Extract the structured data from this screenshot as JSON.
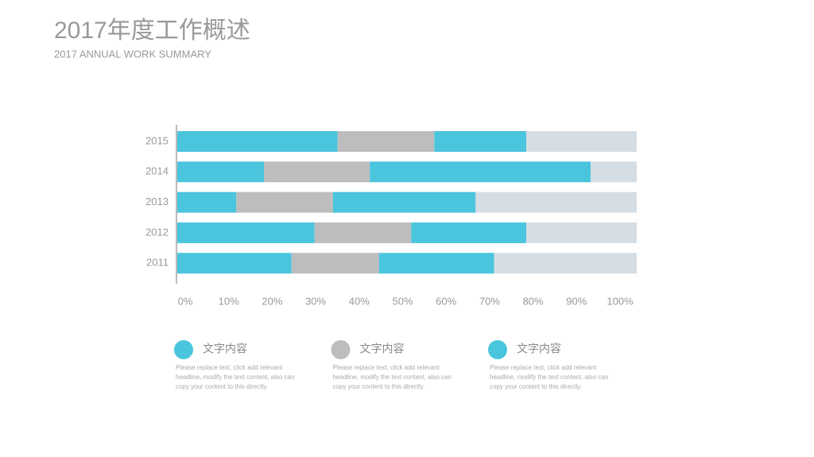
{
  "chart_data": {
    "type": "stacked-barh",
    "title": "2017年度工作概述",
    "subtitle": "2017 ANNUAL WORK SUMMARY",
    "categories": [
      "2015",
      "2014",
      "2013",
      "2012",
      "2011"
    ],
    "series": [
      {
        "color": "#4ac5dd",
        "values": [
          35,
          19,
          13,
          30,
          25
        ]
      },
      {
        "color": "#bdbdbd",
        "values": [
          21,
          23,
          21,
          21,
          19
        ]
      },
      {
        "color": "#4ac5dd",
        "values": [
          20,
          48,
          31,
          25,
          25
        ]
      },
      {
        "color": "#d6dee5",
        "values": [
          24,
          10,
          35,
          24,
          31
        ]
      }
    ],
    "xlim": [
      0,
      100
    ],
    "xticks": [
      {
        "value": 0,
        "label": "0%"
      },
      {
        "value": 10,
        "label": "10%"
      },
      {
        "value": 20,
        "label": "20%"
      },
      {
        "value": 30,
        "label": "30%"
      },
      {
        "value": 40,
        "label": "40%"
      },
      {
        "value": 50,
        "label": "50%"
      },
      {
        "value": 60,
        "label": "60%"
      },
      {
        "value": 70,
        "label": "70%"
      },
      {
        "value": 80,
        "label": "80%"
      },
      {
        "value": 90,
        "label": "90%"
      },
      {
        "value": 100,
        "label": "100%"
      }
    ],
    "grid": false,
    "notes": [
      {
        "color": "#4ac5dd",
        "label": "文字内容",
        "lines": [
          "Please replace text, click add relevant",
          "headline, modify the text content, also can",
          "copy your content to this directly."
        ]
      },
      {
        "color": "#bdbdbd",
        "label": "文字内容",
        "lines": [
          "Please replace text, click add relevant",
          "headline, modify the text content, also can",
          "copy your content to this directly."
        ]
      },
      {
        "color": "#4ac5dd",
        "label": "文字内容",
        "lines": [
          "Please replace text, click add relevant",
          "headline, modify the text content, also can",
          "copy your content to this directly."
        ]
      }
    ]
  }
}
